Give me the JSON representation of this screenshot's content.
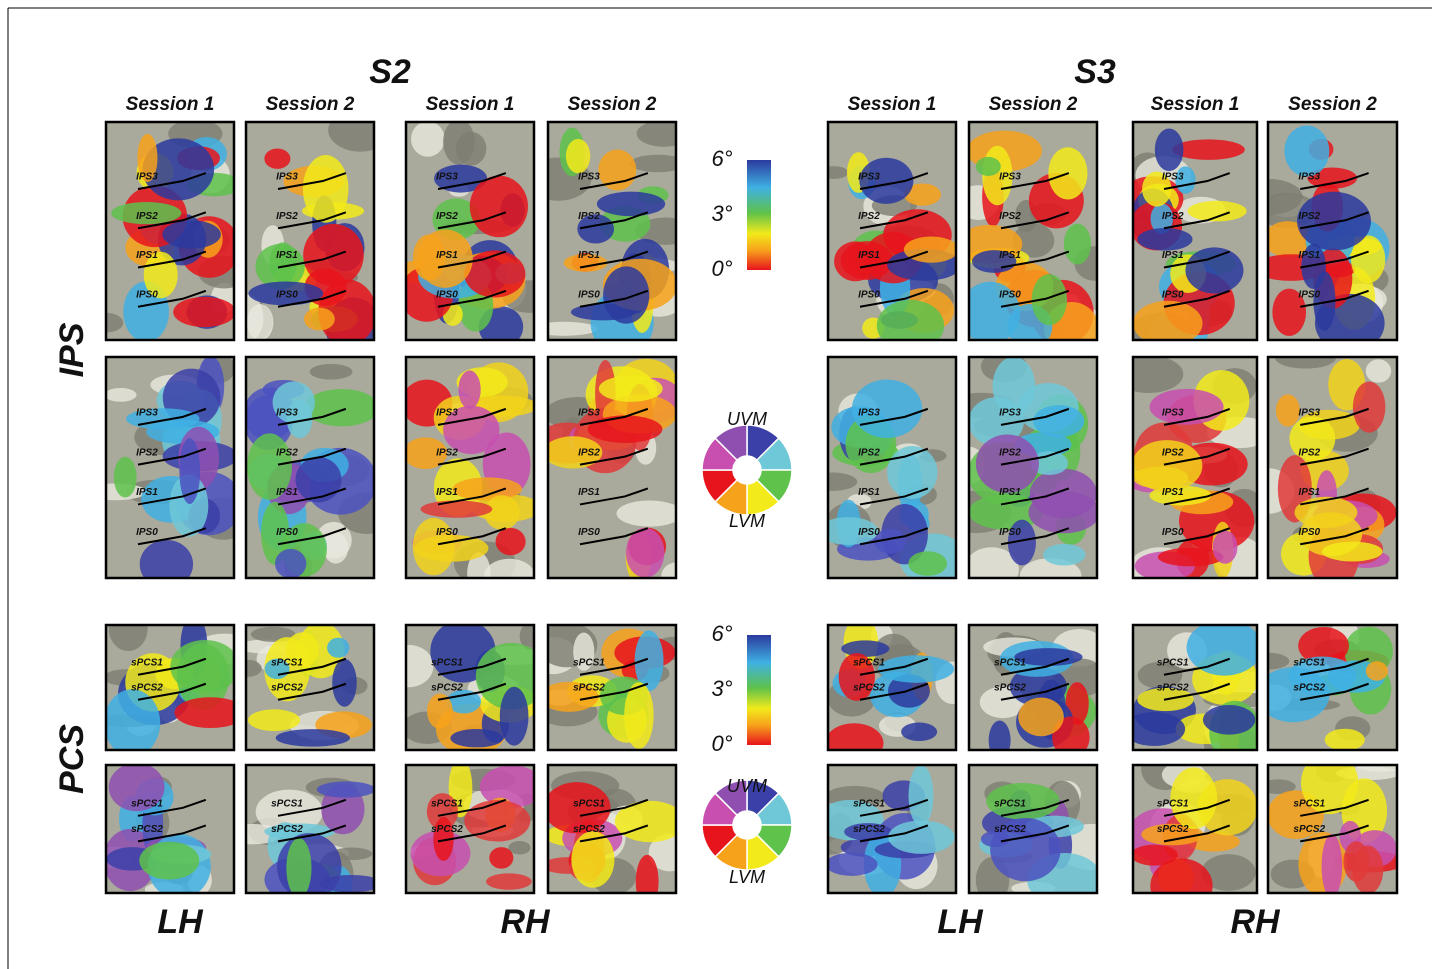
{
  "figure": {
    "subjects": [
      {
        "name": "S2",
        "hemispheres": [
          {
            "name": "LH",
            "sessions": [
              "Session 1",
              "Session 2"
            ]
          },
          {
            "name": "RH",
            "sessions": [
              "Session 1",
              "Session 2"
            ]
          }
        ]
      },
      {
        "name": "S3",
        "hemispheres": [
          {
            "name": "LH",
            "sessions": [
              "Session 1",
              "Session 2"
            ]
          },
          {
            "name": "RH",
            "sessions": [
              "Session 1",
              "Session 2"
            ]
          }
        ]
      }
    ],
    "regions": [
      {
        "name": "IPS",
        "rows": [
          [
            [
              "IPS3",
              "IPS2",
              "IPS1",
              "IPS0"
            ],
            [
              "IPS3",
              "IPS2",
              "IPS1",
              "IPS0"
            ],
            [
              "IPS3",
              "IPS2",
              "IPS1",
              "IPS0"
            ],
            [
              "IPS3",
              "IPS2",
              "IPS1",
              "IPS0"
            ],
            [
              "IPS3",
              "IPS2",
              "IPS1",
              "IPS0"
            ],
            [
              "IPS3",
              "IPS2",
              "IPS1",
              "IPS0"
            ],
            [
              "IPS3",
              "IPS2",
              "IPS1",
              "IPS0"
            ],
            [
              "IPS3",
              "IPS2",
              "IPS1",
              "IPS0"
            ]
          ],
          [
            [
              "IPS3",
              "IPS2",
              "IPS1",
              "IPS0"
            ],
            [
              "IPS3",
              "IPS2",
              "IPS1",
              "IPS0"
            ],
            [
              "IPS3",
              "IPS2",
              "IPS1",
              "IPS0"
            ],
            [
              "IPS3",
              "IPS2",
              "IPS1",
              "IPS0"
            ],
            [
              "IPS3",
              "IPS2",
              "IPS1",
              "IPS0"
            ],
            [
              "IPS3",
              "IPS2",
              "IPS1",
              "IPS0"
            ],
            [
              "IPS3",
              "IPS2",
              "IPS1",
              "IPS0"
            ],
            [
              "IPS3",
              "IPS2",
              "IPS1",
              "IPS0"
            ]
          ]
        ]
      },
      {
        "name": "PCS",
        "rows": [
          [
            [
              "sPCS1",
              "sPCS2"
            ],
            [
              "sPCS1",
              "sPCS2"
            ],
            [
              "sPCS1",
              "sPCS2"
            ],
            [
              "sPCS1",
              "sPCS2"
            ],
            [
              "sPCS1",
              "sPCS2"
            ],
            [
              "sPCS1",
              "sPCS2"
            ],
            [
              "sPCS1",
              "sPCS2"
            ],
            [
              "sPCS1",
              "sPCS2"
            ]
          ],
          [
            [
              "sPCS1",
              "sPCS2"
            ],
            [
              "sPCS1",
              "sPCS2"
            ],
            [
              "sPCS1",
              "sPCS2"
            ],
            [
              "sPCS1",
              "sPCS2"
            ],
            [
              "sPCS1",
              "sPCS2"
            ],
            [
              "sPCS1",
              "sPCS2"
            ],
            [
              "sPCS1",
              "sPCS2"
            ],
            [
              "sPCS1",
              "sPCS2"
            ]
          ]
        ]
      }
    ],
    "legends": [
      {
        "colorbar_ticks": [
          "6°",
          "3°",
          "0°"
        ],
        "wheel_labels": [
          "UVM",
          "LVM"
        ]
      },
      {
        "colorbar_ticks": [
          "6°",
          "3°",
          "0°"
        ],
        "wheel_labels": [
          "UVM",
          "LVM"
        ]
      }
    ]
  }
}
